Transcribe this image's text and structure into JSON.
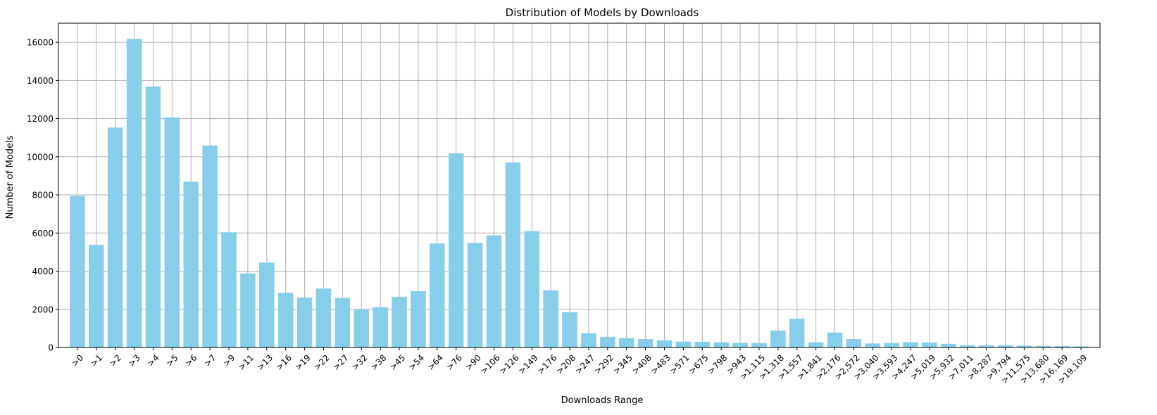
{
  "chart_data": {
    "type": "bar",
    "title": "Distribution of Models by Downloads",
    "xlabel": "Downloads Range",
    "ylabel": "Number of Models",
    "ylim": [
      0,
      17000
    ],
    "yticks": [
      0,
      2000,
      4000,
      6000,
      8000,
      10000,
      12000,
      14000,
      16000
    ],
    "ytick_labels": [
      "0",
      "2000",
      "4000",
      "6000",
      "8000",
      "10000",
      "12000",
      "14000",
      "16000"
    ],
    "grid": true,
    "bar_color": "#87ceeb",
    "categories": [
      ">0",
      ">1",
      ">2",
      ">3",
      ">4",
      ">5",
      ">6",
      ">7",
      ">9",
      ">11",
      ">13",
      ">16",
      ">19",
      ">22",
      ">27",
      ">32",
      ">38",
      ">45",
      ">54",
      ">64",
      ">76",
      ">90",
      ">106",
      ">126",
      ">149",
      ">176",
      ">208",
      ">247",
      ">292",
      ">345",
      ">408",
      ">483",
      ">571",
      ">675",
      ">798",
      ">943",
      ">1,115",
      ">1,318",
      ">1,557",
      ">1,841",
      ">2,176",
      ">2,572",
      ">3,040",
      ">3,593",
      ">4,247",
      ">5,019",
      ">5,932",
      ">7,011",
      ">8,287",
      ">9,794",
      ">11,575",
      ">13,680",
      ">16,169",
      ">19,109"
    ],
    "values": [
      7950,
      5380,
      11530,
      16180,
      13680,
      12060,
      8690,
      10590,
      6040,
      3880,
      4450,
      2860,
      2620,
      3090,
      2600,
      1990,
      2110,
      2660,
      2950,
      5450,
      10180,
      5480,
      5880,
      9700,
      6100,
      3000,
      1850,
      740,
      560,
      490,
      440,
      370,
      310,
      300,
      270,
      240,
      230,
      890,
      1510,
      270,
      780,
      440,
      210,
      230,
      280,
      260,
      190,
      120,
      110,
      110,
      100,
      80,
      70,
      60
    ]
  }
}
